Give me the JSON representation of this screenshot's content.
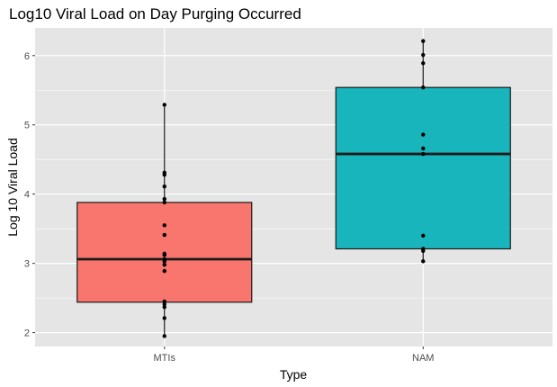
{
  "chart_data": {
    "type": "boxplot",
    "title": "Log10 Viral Load on Day Purging Occurred",
    "xlabel": "Type",
    "ylabel": "Log 10 Viral Load",
    "categories": [
      "MTIs",
      "NAM"
    ],
    "ylim": [
      1.8,
      6.4
    ],
    "yticks": [
      2,
      3,
      4,
      5,
      6
    ],
    "grid": true,
    "background": "#e5e5e5",
    "grid_color": "#ffffff",
    "series": [
      {
        "category": "MTIs",
        "color": "#f8766d",
        "box": {
          "whisker_low": 1.95,
          "q1": 2.44,
          "median": 3.06,
          "q3": 3.88,
          "whisker_high": 5.29
        },
        "points": [
          1.95,
          2.21,
          2.37,
          2.41,
          2.45,
          2.89,
          2.98,
          3.03,
          3.06,
          3.12,
          3.14,
          3.41,
          3.55,
          3.88,
          3.93,
          4.11,
          4.28,
          4.31,
          5.29
        ]
      },
      {
        "category": "NAM",
        "color": "#19b5bc",
        "box": {
          "whisker_low": 3.03,
          "q1": 3.21,
          "median": 4.58,
          "q3": 5.54,
          "whisker_high": 6.21
        },
        "points": [
          3.03,
          3.18,
          3.21,
          3.4,
          4.58,
          4.66,
          4.86,
          5.54,
          5.89,
          6.01,
          6.21
        ]
      }
    ]
  }
}
